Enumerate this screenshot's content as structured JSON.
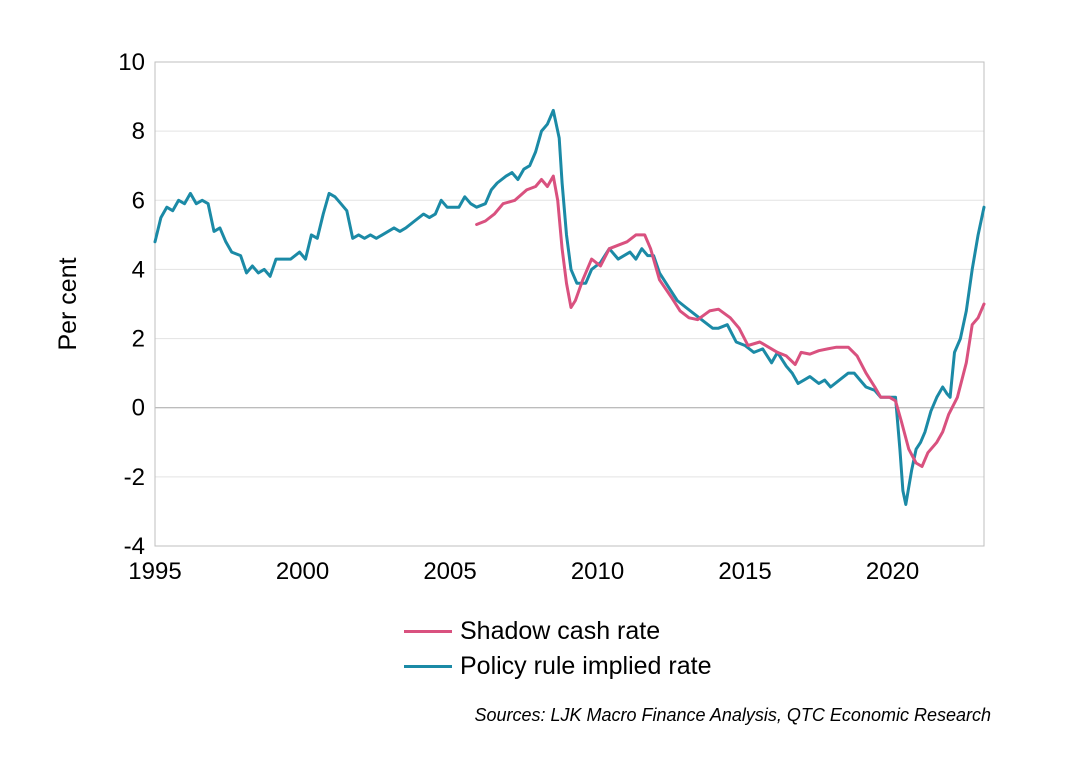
{
  "chart_data": {
    "type": "line",
    "ylabel": "Per cent",
    "xlabel": "",
    "xlim": [
      1995,
      2023.1
    ],
    "ylim": [
      -4,
      10
    ],
    "x_ticks": [
      1995,
      2000,
      2005,
      2010,
      2015,
      2020
    ],
    "y_ticks": [
      -4,
      -2,
      0,
      2,
      4,
      6,
      8,
      10
    ],
    "grid": true,
    "legend_position": "bottom",
    "source": "Sources: LJK Macro Finance Analysis, QTC Economic Research",
    "series": [
      {
        "name": "Shadow cash rate",
        "color": "#d9517f",
        "points": [
          [
            2005.9,
            5.3
          ],
          [
            2006.2,
            5.4
          ],
          [
            2006.5,
            5.6
          ],
          [
            2006.8,
            5.9
          ],
          [
            2007.2,
            6.0
          ],
          [
            2007.6,
            6.3
          ],
          [
            2007.9,
            6.4
          ],
          [
            2008.1,
            6.6
          ],
          [
            2008.3,
            6.4
          ],
          [
            2008.5,
            6.7
          ],
          [
            2008.65,
            6.0
          ],
          [
            2008.8,
            4.6
          ],
          [
            2008.95,
            3.6
          ],
          [
            2009.1,
            2.9
          ],
          [
            2009.25,
            3.1
          ],
          [
            2009.5,
            3.7
          ],
          [
            2009.8,
            4.3
          ],
          [
            2010.1,
            4.1
          ],
          [
            2010.4,
            4.6
          ],
          [
            2010.7,
            4.7
          ],
          [
            2011.0,
            4.8
          ],
          [
            2011.3,
            5.0
          ],
          [
            2011.6,
            5.0
          ],
          [
            2011.8,
            4.6
          ],
          [
            2012.1,
            3.7
          ],
          [
            2012.5,
            3.2
          ],
          [
            2012.8,
            2.8
          ],
          [
            2013.1,
            2.6
          ],
          [
            2013.4,
            2.55
          ],
          [
            2013.8,
            2.8
          ],
          [
            2014.1,
            2.85
          ],
          [
            2014.5,
            2.6
          ],
          [
            2014.8,
            2.3
          ],
          [
            2015.1,
            1.8
          ],
          [
            2015.5,
            1.9
          ],
          [
            2015.8,
            1.75
          ],
          [
            2016.1,
            1.6
          ],
          [
            2016.4,
            1.5
          ],
          [
            2016.7,
            1.25
          ],
          [
            2016.9,
            1.6
          ],
          [
            2017.2,
            1.55
          ],
          [
            2017.5,
            1.65
          ],
          [
            2017.8,
            1.7
          ],
          [
            2018.1,
            1.75
          ],
          [
            2018.5,
            1.75
          ],
          [
            2018.8,
            1.5
          ],
          [
            2019.1,
            1.0
          ],
          [
            2019.4,
            0.6
          ],
          [
            2019.6,
            0.3
          ],
          [
            2019.9,
            0.3
          ],
          [
            2020.1,
            0.2
          ],
          [
            2020.3,
            -0.4
          ],
          [
            2020.55,
            -1.2
          ],
          [
            2020.8,
            -1.6
          ],
          [
            2021.0,
            -1.7
          ],
          [
            2021.2,
            -1.3
          ],
          [
            2021.5,
            -1.0
          ],
          [
            2021.7,
            -0.7
          ],
          [
            2021.9,
            -0.2
          ],
          [
            2022.2,
            0.3
          ],
          [
            2022.5,
            1.3
          ],
          [
            2022.7,
            2.4
          ],
          [
            2022.9,
            2.6
          ],
          [
            2023.1,
            3.0
          ]
        ]
      },
      {
        "name": "Policy rule implied rate",
        "color": "#1b8aa6",
        "points": [
          [
            1995.0,
            4.8
          ],
          [
            1995.2,
            5.5
          ],
          [
            1995.4,
            5.8
          ],
          [
            1995.6,
            5.7
          ],
          [
            1995.8,
            6.0
          ],
          [
            1996.0,
            5.9
          ],
          [
            1996.2,
            6.2
          ],
          [
            1996.4,
            5.9
          ],
          [
            1996.6,
            6.0
          ],
          [
            1996.8,
            5.9
          ],
          [
            1997.0,
            5.1
          ],
          [
            1997.2,
            5.2
          ],
          [
            1997.4,
            4.8
          ],
          [
            1997.6,
            4.5
          ],
          [
            1997.9,
            4.4
          ],
          [
            1998.1,
            3.9
          ],
          [
            1998.3,
            4.1
          ],
          [
            1998.5,
            3.9
          ],
          [
            1998.7,
            4.0
          ],
          [
            1998.9,
            3.8
          ],
          [
            1999.1,
            4.3
          ],
          [
            1999.3,
            4.3
          ],
          [
            1999.6,
            4.3
          ],
          [
            1999.9,
            4.5
          ],
          [
            2000.1,
            4.3
          ],
          [
            2000.3,
            5.0
          ],
          [
            2000.5,
            4.9
          ],
          [
            2000.7,
            5.6
          ],
          [
            2000.9,
            6.2
          ],
          [
            2001.1,
            6.1
          ],
          [
            2001.3,
            5.9
          ],
          [
            2001.5,
            5.7
          ],
          [
            2001.7,
            4.9
          ],
          [
            2001.9,
            5.0
          ],
          [
            2002.1,
            4.9
          ],
          [
            2002.3,
            5.0
          ],
          [
            2002.5,
            4.9
          ],
          [
            2002.7,
            5.0
          ],
          [
            2002.9,
            5.1
          ],
          [
            2003.1,
            5.2
          ],
          [
            2003.3,
            5.1
          ],
          [
            2003.5,
            5.2
          ],
          [
            2003.8,
            5.4
          ],
          [
            2004.1,
            5.6
          ],
          [
            2004.3,
            5.5
          ],
          [
            2004.5,
            5.6
          ],
          [
            2004.7,
            6.0
          ],
          [
            2004.9,
            5.8
          ],
          [
            2005.1,
            5.8
          ],
          [
            2005.3,
            5.8
          ],
          [
            2005.5,
            6.1
          ],
          [
            2005.7,
            5.9
          ],
          [
            2005.9,
            5.8
          ],
          [
            2006.2,
            5.9
          ],
          [
            2006.4,
            6.3
          ],
          [
            2006.6,
            6.5
          ],
          [
            2006.9,
            6.7
          ],
          [
            2007.1,
            6.8
          ],
          [
            2007.3,
            6.6
          ],
          [
            2007.5,
            6.9
          ],
          [
            2007.7,
            7.0
          ],
          [
            2007.9,
            7.4
          ],
          [
            2008.1,
            8.0
          ],
          [
            2008.3,
            8.2
          ],
          [
            2008.5,
            8.6
          ],
          [
            2008.7,
            7.8
          ],
          [
            2008.8,
            6.5
          ],
          [
            2008.95,
            5.0
          ],
          [
            2009.1,
            4.0
          ],
          [
            2009.3,
            3.6
          ],
          [
            2009.6,
            3.6
          ],
          [
            2009.8,
            4.0
          ],
          [
            2010.1,
            4.2
          ],
          [
            2010.4,
            4.6
          ],
          [
            2010.7,
            4.3
          ],
          [
            2010.9,
            4.4
          ],
          [
            2011.1,
            4.5
          ],
          [
            2011.3,
            4.3
          ],
          [
            2011.5,
            4.6
          ],
          [
            2011.7,
            4.4
          ],
          [
            2011.9,
            4.4
          ],
          [
            2012.1,
            3.9
          ],
          [
            2012.4,
            3.5
          ],
          [
            2012.7,
            3.1
          ],
          [
            2013.0,
            2.9
          ],
          [
            2013.3,
            2.7
          ],
          [
            2013.6,
            2.5
          ],
          [
            2013.9,
            2.3
          ],
          [
            2014.1,
            2.3
          ],
          [
            2014.4,
            2.4
          ],
          [
            2014.7,
            1.9
          ],
          [
            2015.0,
            1.8
          ],
          [
            2015.3,
            1.6
          ],
          [
            2015.6,
            1.7
          ],
          [
            2015.9,
            1.3
          ],
          [
            2016.1,
            1.6
          ],
          [
            2016.4,
            1.2
          ],
          [
            2016.6,
            1.0
          ],
          [
            2016.8,
            0.7
          ],
          [
            2017.0,
            0.8
          ],
          [
            2017.2,
            0.9
          ],
          [
            2017.5,
            0.7
          ],
          [
            2017.7,
            0.8
          ],
          [
            2017.9,
            0.6
          ],
          [
            2018.2,
            0.8
          ],
          [
            2018.5,
            1.0
          ],
          [
            2018.7,
            1.0
          ],
          [
            2018.9,
            0.8
          ],
          [
            2019.1,
            0.6
          ],
          [
            2019.4,
            0.5
          ],
          [
            2019.6,
            0.3
          ],
          [
            2019.9,
            0.3
          ],
          [
            2020.1,
            0.3
          ],
          [
            2020.25,
            -1.2
          ],
          [
            2020.35,
            -2.4
          ],
          [
            2020.45,
            -2.8
          ],
          [
            2020.65,
            -1.8
          ],
          [
            2020.8,
            -1.2
          ],
          [
            2020.95,
            -1.0
          ],
          [
            2021.1,
            -0.7
          ],
          [
            2021.3,
            -0.1
          ],
          [
            2021.5,
            0.3
          ],
          [
            2021.7,
            0.6
          ],
          [
            2021.85,
            0.4
          ],
          [
            2021.95,
            0.3
          ],
          [
            2022.1,
            1.6
          ],
          [
            2022.3,
            2.0
          ],
          [
            2022.5,
            2.8
          ],
          [
            2022.7,
            4.0
          ],
          [
            2022.9,
            5.0
          ],
          [
            2023.1,
            5.8
          ]
        ]
      }
    ]
  }
}
